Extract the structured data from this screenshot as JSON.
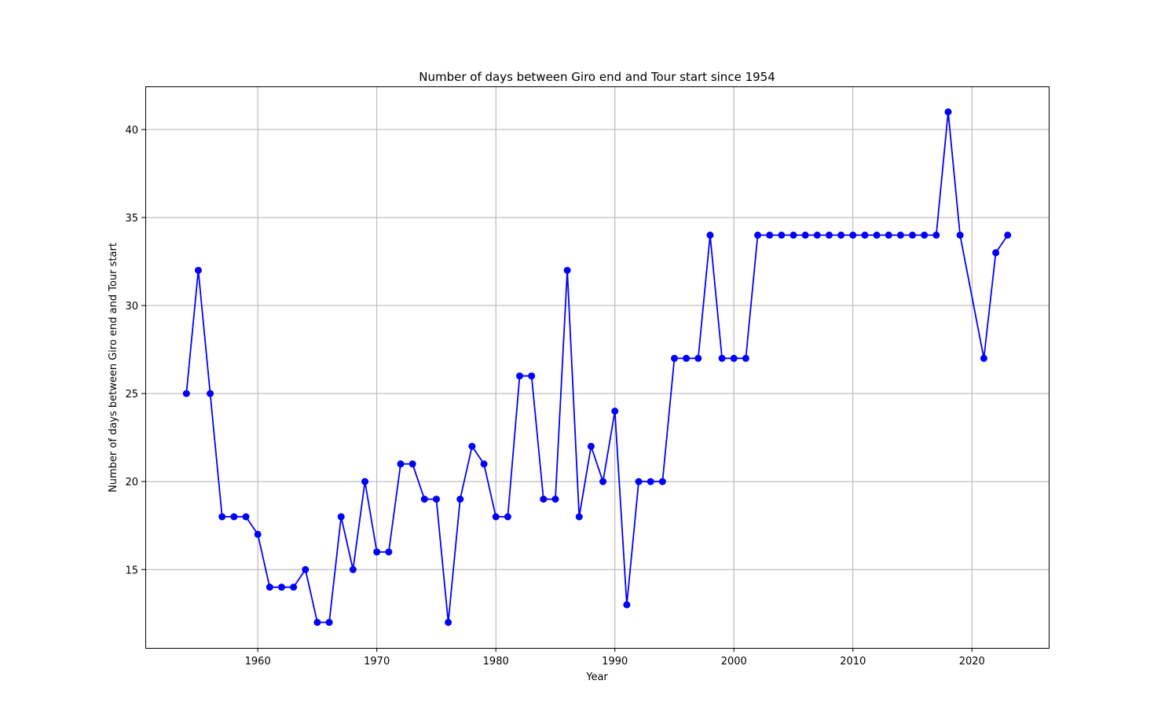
{
  "chart_data": {
    "type": "line",
    "title": "Number of days between Giro end and Tour start since 1954",
    "xlabel": "Year",
    "ylabel": "Number of days between Giro end and Tour start",
    "xlim": [
      1950.55,
      2026.45
    ],
    "ylim": [
      10.55,
      42.45
    ],
    "xticks": [
      1960,
      1970,
      1980,
      1990,
      2000,
      2010,
      2020
    ],
    "yticks": [
      15,
      20,
      25,
      30,
      35,
      40
    ],
    "grid": true,
    "marker": "circle",
    "series_color": "#0000ff",
    "grid_color": "#b0b0b0",
    "x": [
      1954,
      1955,
      1956,
      1957,
      1958,
      1959,
      1960,
      1961,
      1962,
      1963,
      1964,
      1965,
      1966,
      1967,
      1968,
      1969,
      1970,
      1971,
      1972,
      1973,
      1974,
      1975,
      1976,
      1977,
      1978,
      1979,
      1980,
      1981,
      1982,
      1983,
      1984,
      1985,
      1986,
      1987,
      1988,
      1989,
      1990,
      1991,
      1992,
      1993,
      1994,
      1995,
      1996,
      1997,
      1998,
      1999,
      2000,
      2001,
      2002,
      2003,
      2004,
      2005,
      2006,
      2007,
      2008,
      2009,
      2010,
      2011,
      2012,
      2013,
      2014,
      2015,
      2016,
      2017,
      2018,
      2019,
      2021,
      2022,
      2023
    ],
    "y": [
      25,
      32,
      25,
      18,
      18,
      18,
      17,
      14,
      14,
      14,
      15,
      12,
      12,
      18,
      15,
      20,
      16,
      16,
      21,
      21,
      19,
      19,
      12,
      19,
      22,
      21,
      18,
      18,
      26,
      26,
      19,
      19,
      32,
      18,
      22,
      20,
      24,
      13,
      20,
      20,
      20,
      27,
      27,
      27,
      34,
      27,
      27,
      27,
      34,
      34,
      34,
      34,
      34,
      34,
      34,
      34,
      34,
      34,
      34,
      34,
      34,
      34,
      34,
      34,
      41,
      34,
      27,
      33,
      34
    ]
  }
}
